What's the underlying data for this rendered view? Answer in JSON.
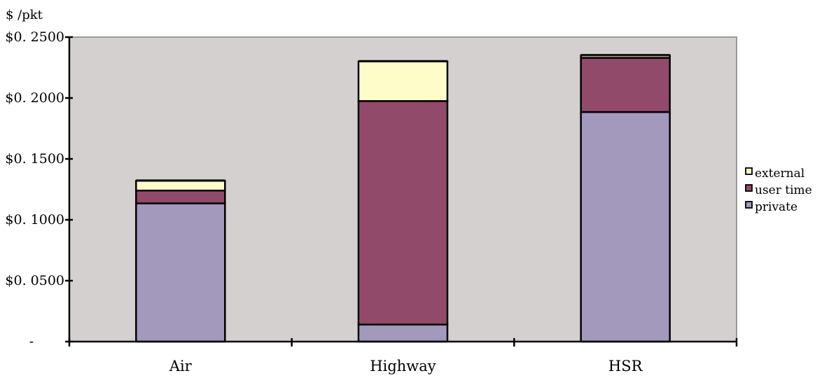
{
  "chart_data": {
    "type": "bar",
    "stacked": true,
    "ylabel": "$ /pkt",
    "categories": [
      "Air",
      "Highway",
      "HSR"
    ],
    "series": [
      {
        "name": "private",
        "color": "#A399BD",
        "values": [
          0.1135,
          0.014,
          0.1885
        ]
      },
      {
        "name": "user time",
        "color": "#924A6B",
        "values": [
          0.0105,
          0.1835,
          0.0445
        ]
      },
      {
        "name": "external",
        "color": "#FEFCC8",
        "values": [
          0.008,
          0.0325,
          0.002
        ]
      }
    ],
    "top_cap_color": "#111111",
    "ylim": [
      0,
      0.25
    ],
    "yticks": [
      0,
      0.05,
      0.1,
      0.15,
      0.2,
      0.25
    ],
    "ytick_labels": [
      "-",
      "$0. 0500",
      "$0. 1000",
      "$0. 1500",
      "$0. 2000",
      "$0. 2500"
    ],
    "legend": {
      "placement": "right",
      "items": [
        "external",
        "user time",
        "private"
      ]
    },
    "plot_background": "#D4D0CF",
    "plot_border_color": "#999999",
    "grid": false
  }
}
